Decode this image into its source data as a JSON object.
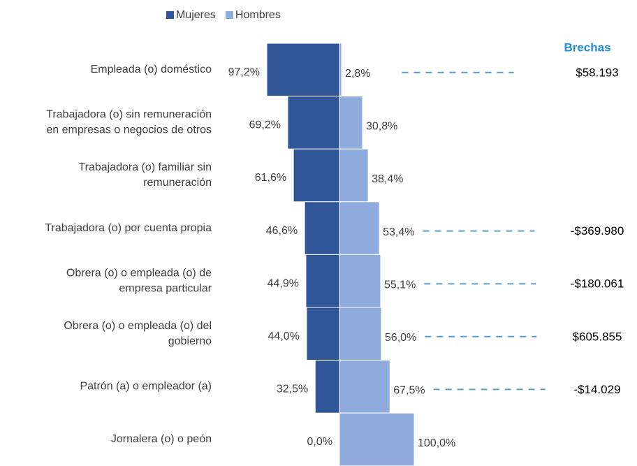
{
  "chart_data": {
    "type": "diverging_bar",
    "categories": [
      [
        "Empleada (o) doméstico"
      ],
      [
        "Trabajadora (o) sin remuneración",
        "en empresas o negocios de otros"
      ],
      [
        "Trabajadora (o) familiar sin",
        "remuneración"
      ],
      [
        "Trabajadora (o) por cuenta propia"
      ],
      [
        "Obrera (o) o empleada (o) de",
        "empresa particular"
      ],
      [
        "Obrera (o) o empleada (o) del",
        "gobierno"
      ],
      [
        "Patrón (a) o empleador (a)"
      ],
      [
        "Jornalera (o) o peón"
      ]
    ],
    "series": [
      {
        "name": "Mujeres",
        "color": "#2f5597",
        "side": "left",
        "values": [
          97.2,
          69.2,
          61.6,
          46.6,
          44.9,
          44.0,
          32.5,
          0.0
        ],
        "value_labels": [
          "97,2%",
          "69,2%",
          "61,6%",
          "46,6%",
          "44,9%",
          "44,0%",
          "32,5%",
          "0,0%"
        ]
      },
      {
        "name": "Hombres",
        "color": "#8faadc",
        "side": "right",
        "values": [
          2.8,
          30.8,
          38.4,
          53.4,
          55.1,
          56.0,
          67.5,
          100.0
        ],
        "value_labels": [
          "2,8%",
          "30,8%",
          "38,4%",
          "53,4%",
          "55,1%",
          "56,0%",
          "67,5%",
          "100,0%"
        ]
      }
    ],
    "xlim": [
      0,
      100
    ],
    "gaps": {
      "title": "Brechas",
      "color": "#5b9bd5",
      "values": [
        58193,
        null,
        null,
        -369980,
        -180061,
        605855,
        -14029,
        null
      ],
      "value_labels": [
        "$58.193",
        null,
        null,
        "-$369.980",
        "-$180.061",
        "$605.855",
        "-$14.029",
        null
      ]
    }
  }
}
